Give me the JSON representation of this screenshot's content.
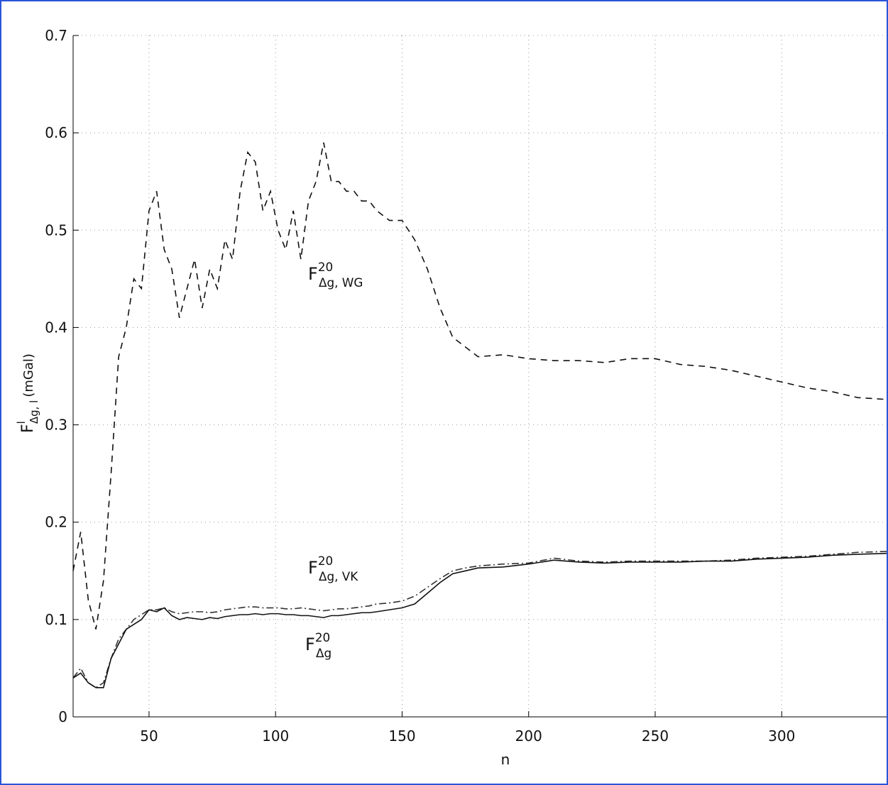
{
  "chart_data": {
    "type": "line",
    "ylabel": {
      "base": "F",
      "sup": "l",
      "sub": "Δg, l",
      "unit": "(mGal)"
    },
    "xlabel": "n",
    "x": [
      20,
      23,
      26,
      29,
      32,
      35,
      38,
      41,
      44,
      47,
      50,
      53,
      56,
      59,
      62,
      65,
      68,
      71,
      74,
      77,
      80,
      83,
      86,
      89,
      92,
      95,
      98,
      101,
      104,
      107,
      110,
      113,
      116,
      119,
      122,
      125,
      128,
      131,
      134,
      137,
      140,
      145,
      150,
      155,
      160,
      165,
      170,
      175,
      180,
      190,
      200,
      210,
      220,
      230,
      240,
      250,
      260,
      270,
      280,
      290,
      300,
      310,
      320,
      330,
      342
    ],
    "series": [
      {
        "label": {
          "base": "F",
          "sup": "20",
          "sub": "Δg, WG"
        },
        "color": "#111111",
        "style": "dashed",
        "values": [
          0.15,
          0.19,
          0.12,
          0.09,
          0.14,
          0.25,
          0.37,
          0.4,
          0.45,
          0.44,
          0.52,
          0.54,
          0.48,
          0.46,
          0.41,
          0.44,
          0.47,
          0.42,
          0.46,
          0.44,
          0.49,
          0.47,
          0.54,
          0.58,
          0.57,
          0.52,
          0.54,
          0.5,
          0.48,
          0.52,
          0.47,
          0.53,
          0.55,
          0.59,
          0.55,
          0.55,
          0.54,
          0.54,
          0.53,
          0.53,
          0.52,
          0.51,
          0.51,
          0.49,
          0.46,
          0.42,
          0.39,
          0.38,
          0.37,
          0.372,
          0.368,
          0.366,
          0.366,
          0.364,
          0.368,
          0.368,
          0.362,
          0.36,
          0.356,
          0.35,
          0.344,
          0.338,
          0.334,
          0.328,
          0.326
        ]
      },
      {
        "label": {
          "base": "F",
          "sup": "20",
          "sub": "Δg, VK"
        },
        "color": "#333333",
        "style": "dashdot",
        "values": [
          0.04,
          0.05,
          0.035,
          0.03,
          0.035,
          0.06,
          0.08,
          0.09,
          0.1,
          0.105,
          0.11,
          0.11,
          0.112,
          0.108,
          0.106,
          0.107,
          0.108,
          0.108,
          0.107,
          0.108,
          0.11,
          0.111,
          0.112,
          0.113,
          0.113,
          0.112,
          0.112,
          0.112,
          0.111,
          0.111,
          0.112,
          0.111,
          0.11,
          0.109,
          0.11,
          0.111,
          0.111,
          0.112,
          0.113,
          0.114,
          0.116,
          0.117,
          0.119,
          0.124,
          0.133,
          0.142,
          0.15,
          0.153,
          0.155,
          0.157,
          0.158,
          0.163,
          0.16,
          0.159,
          0.16,
          0.16,
          0.16,
          0.16,
          0.161,
          0.163,
          0.164,
          0.165,
          0.167,
          0.169,
          0.17
        ]
      },
      {
        "label": {
          "base": "F",
          "sup": "20",
          "sub": "Δg"
        },
        "color": "#111111",
        "style": "solid",
        "values": [
          0.04,
          0.045,
          0.035,
          0.03,
          0.03,
          0.06,
          0.075,
          0.09,
          0.095,
          0.1,
          0.11,
          0.108,
          0.112,
          0.104,
          0.1,
          0.102,
          0.101,
          0.1,
          0.102,
          0.101,
          0.103,
          0.104,
          0.105,
          0.105,
          0.106,
          0.105,
          0.106,
          0.106,
          0.105,
          0.105,
          0.104,
          0.104,
          0.103,
          0.102,
          0.104,
          0.104,
          0.105,
          0.106,
          0.107,
          0.107,
          0.108,
          0.11,
          0.112,
          0.116,
          0.127,
          0.138,
          0.147,
          0.15,
          0.153,
          0.154,
          0.157,
          0.161,
          0.159,
          0.158,
          0.159,
          0.159,
          0.159,
          0.16,
          0.16,
          0.162,
          0.163,
          0.164,
          0.166,
          0.167,
          0.168
        ]
      }
    ],
    "xlim": [
      20,
      342
    ],
    "ylim": [
      0,
      0.7
    ],
    "xticks": [
      50,
      100,
      150,
      200,
      250,
      300
    ],
    "yticks": [
      0,
      0.1,
      0.2,
      0.3,
      0.4,
      0.5,
      0.6,
      0.7
    ],
    "grid": true
  }
}
